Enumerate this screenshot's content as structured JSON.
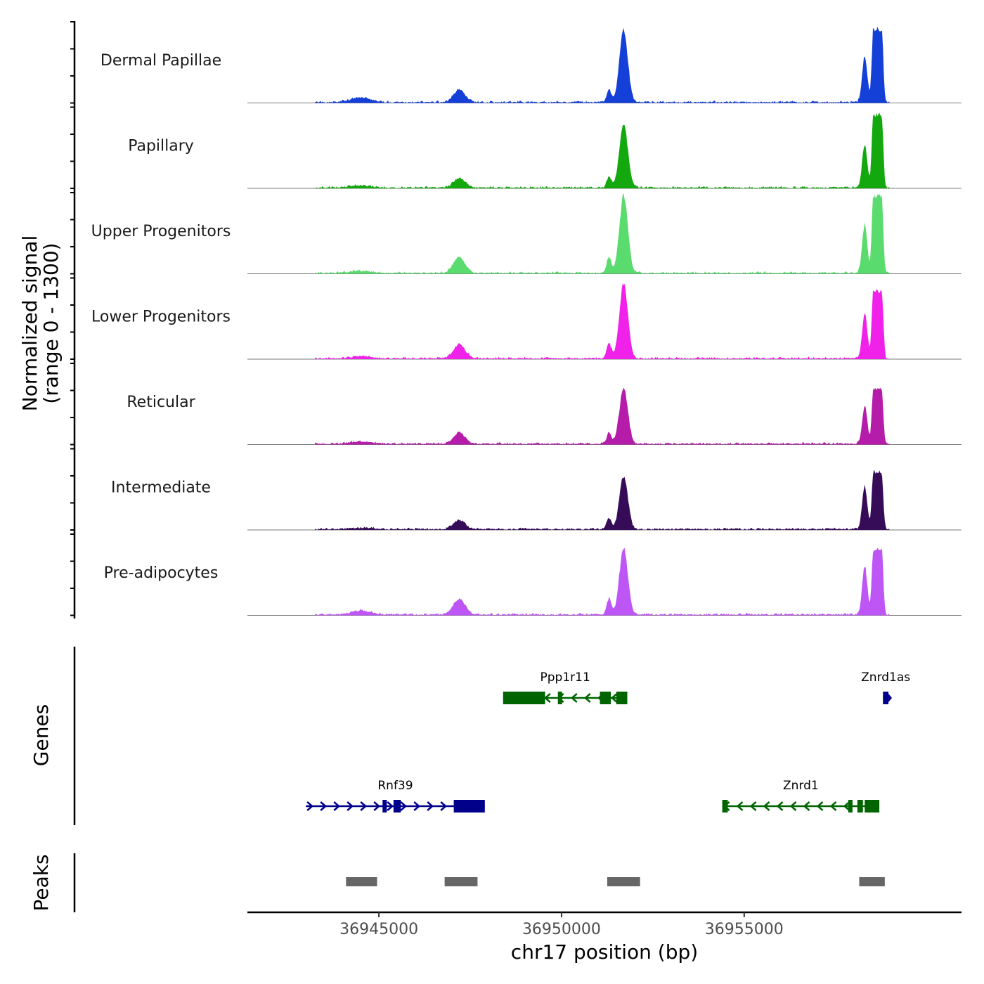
{
  "chart_data": {
    "type": "area",
    "title": "",
    "xlabel": "chr17 position (bp)",
    "ylabel": [
      "Normalized signal",
      "(range 0 - 1300)"
    ],
    "ylim": [
      0,
      1300
    ],
    "xlim": [
      36941400,
      36960950
    ],
    "x_ticks": [
      {
        "value": 36945000,
        "label": "36945000"
      },
      {
        "value": 36950000,
        "label": "36950000"
      },
      {
        "value": 36955000,
        "label": "36955000"
      }
    ],
    "peak_positions": [
      {
        "pos": 36944500,
        "kind": "hump",
        "rel": 0.06,
        "w": 400
      },
      {
        "pos": 36947200,
        "kind": "peak",
        "rel": 0.14,
        "w": 500
      },
      {
        "pos": 36951300,
        "kind": "peak",
        "rel": 0.28,
        "w": 200
      },
      {
        "pos": 36951700,
        "kind": "peak",
        "rel": 1.0,
        "w": 360
      },
      {
        "pos": 36958300,
        "kind": "peak",
        "rel": 0.55,
        "w": 220
      },
      {
        "pos": 36958650,
        "kind": "plateau",
        "rel": 0.95,
        "w": 330
      }
    ],
    "series": [
      {
        "name": "Dermal Papillae",
        "color": "#1540d8",
        "scale": [
          0.06,
          0.16,
          0.16,
          0.92,
          0.58,
          0.93
        ]
      },
      {
        "name": "Papillary",
        "color": "#13a80e",
        "scale": [
          0.03,
          0.12,
          0.14,
          0.82,
          0.55,
          0.92
        ]
      },
      {
        "name": "Upper Progenitors",
        "color": "#59dc6d",
        "scale": [
          0.03,
          0.2,
          0.2,
          0.99,
          0.62,
          0.98
        ]
      },
      {
        "name": "Lower Progenitors",
        "color": "#f021e9",
        "scale": [
          0.03,
          0.18,
          0.2,
          0.96,
          0.58,
          0.86
        ]
      },
      {
        "name": "Reticular",
        "color": "#b41ca9",
        "scale": [
          0.03,
          0.14,
          0.14,
          0.71,
          0.47,
          0.7
        ]
      },
      {
        "name": "Intermediate",
        "color": "#360c59",
        "scale": [
          0.02,
          0.12,
          0.14,
          0.67,
          0.55,
          0.72
        ]
      },
      {
        "name": "Pre-adipocytes",
        "color": "#bd56f5",
        "scale": [
          0.05,
          0.2,
          0.2,
          0.86,
          0.62,
          0.83
        ]
      }
    ],
    "genes_track": {
      "title": "Genes",
      "genes": [
        {
          "name": "Ppp1r11",
          "strand": "-",
          "row": 0,
          "color": "#006400",
          "start": 36948400,
          "end": 36951800,
          "exons": [
            [
              36948400,
              36949550
            ],
            [
              36949900,
              36950000
            ],
            [
              36951050,
              36951350
            ],
            [
              36951500,
              36951800
            ]
          ]
        },
        {
          "name": "Znrd1as",
          "strand": "+",
          "row": 0,
          "color": "#00008b",
          "start": 36958800,
          "end": 36958950,
          "exons": [
            [
              36958800,
              36958950
            ]
          ]
        },
        {
          "name": "Rnf39",
          "strand": "+",
          "row": 1,
          "color": "#00008b",
          "start": 36943000,
          "end": 36947900,
          "exons": [
            [
              36945100,
              36945200
            ],
            [
              36945400,
              36945600
            ],
            [
              36947050,
              36947900
            ]
          ]
        },
        {
          "name": "Znrd1",
          "strand": "-",
          "row": 1,
          "color": "#006400",
          "start": 36954400,
          "end": 36958700,
          "exons": [
            [
              36954400,
              36954550
            ],
            [
              36957850,
              36957950
            ],
            [
              36958100,
              36958250
            ],
            [
              36958300,
              36958700
            ]
          ]
        }
      ]
    },
    "peaks_track": {
      "title": "Peaks",
      "color": "#666666",
      "regions": [
        [
          36944100,
          36944950
        ],
        [
          36946800,
          36947700
        ],
        [
          36951250,
          36952150
        ],
        [
          36958150,
          36958850
        ]
      ]
    }
  }
}
